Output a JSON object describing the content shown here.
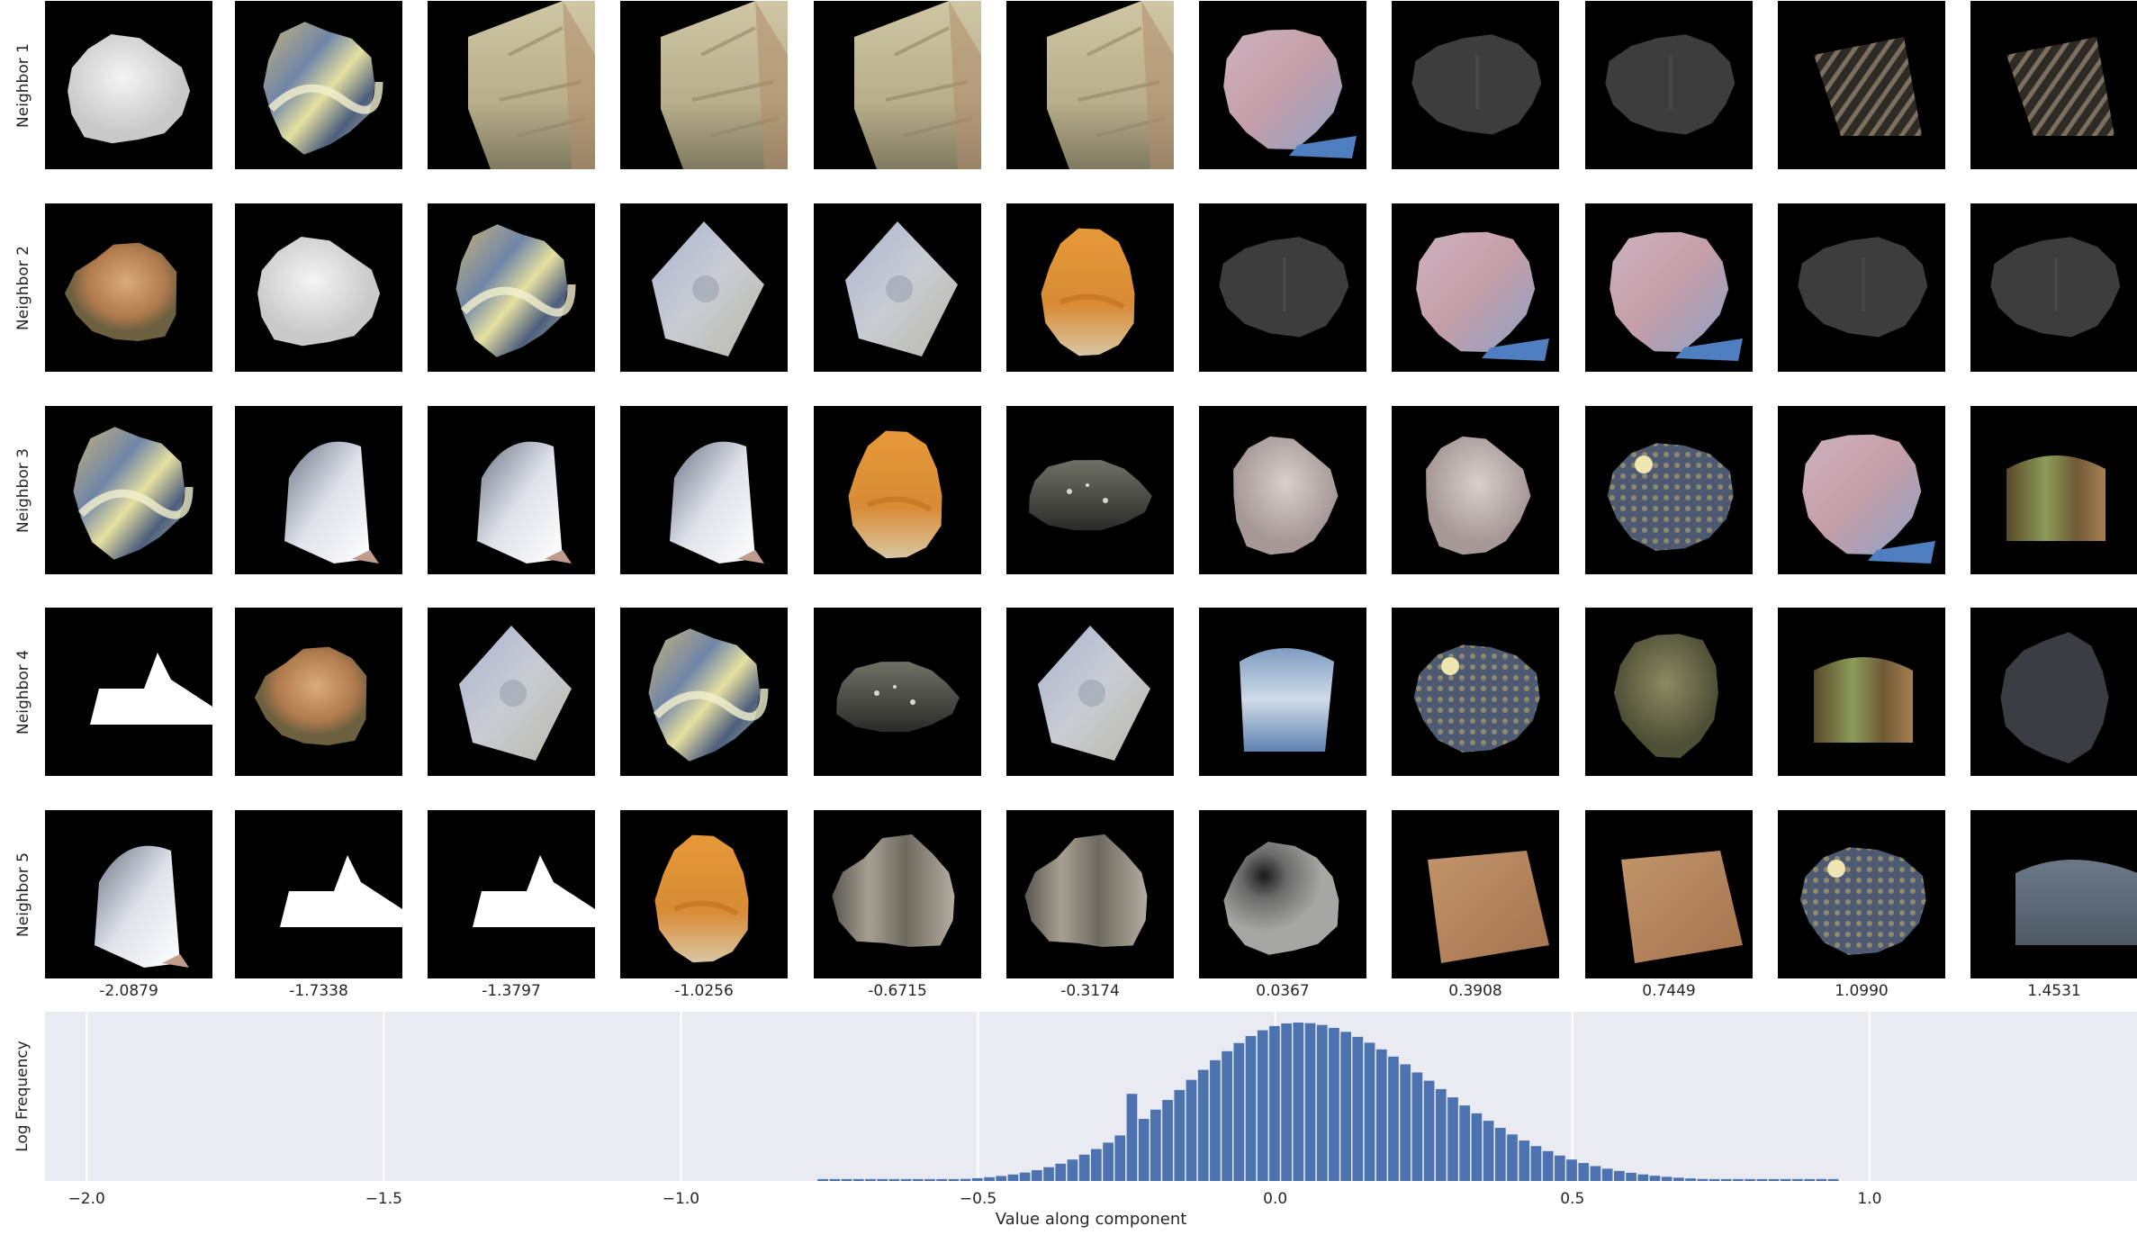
{
  "row_labels": [
    "Neighbor 1",
    "Neighbor 2",
    "Neighbor 3",
    "Neighbor 4",
    "Neighbor 5"
  ],
  "column_values": [
    "-2.0879",
    "-1.7338",
    "-1.3797",
    "-1.0256",
    "-0.6715",
    "-0.3174",
    "0.0367",
    "0.3908",
    "0.7449",
    "1.0990",
    "1.4531"
  ],
  "tile_style_legend": {
    "white_blob": "white round blob",
    "glass": "yellow-blue swirled glass texture",
    "rock_cliff": "beige rock cliff",
    "sky": "pink-blue sky patch",
    "gray_disc": "dark gray rounded shape",
    "striped_dark": "dark striped texture",
    "tan_blob": "tan brown textured blob",
    "statue": "blue-gray statue patch",
    "orange": "orange sandstone",
    "gradient_cap": "gray-to-white gradient shape",
    "pebble": "dark shiny pebble",
    "pale_pink": "pale pinkish blob",
    "dotted_blue": "blue dotted pattern",
    "moss_box": "green brown mossy block",
    "white_cloud": "white shape with flat bottom",
    "cloud_blue": "blue and white cloud texture",
    "moss_round": "olive mossy round texture",
    "dark_blob": "dark gray blob",
    "wood": "grayish wood-grain blob",
    "gray_ball": "gray shaded ball",
    "sand_square": "sandy brown square",
    "slate": "slate blue texture"
  },
  "tiles": [
    [
      "white_blob",
      "glass",
      "rock_cliff",
      "rock_cliff",
      "rock_cliff",
      "rock_cliff",
      "sky",
      "gray_disc",
      "gray_disc",
      "striped_dark",
      "striped_dark"
    ],
    [
      "tan_blob",
      "white_blob",
      "glass",
      "statue",
      "statue",
      "orange",
      "gray_disc",
      "sky",
      "sky",
      "gray_disc",
      "gray_disc"
    ],
    [
      "glass",
      "gradient_cap",
      "gradient_cap",
      "gradient_cap",
      "orange",
      "pebble",
      "pale_pink",
      "pale_pink",
      "dotted_blue",
      "sky",
      "moss_box"
    ],
    [
      "white_cloud",
      "tan_blob",
      "statue",
      "glass",
      "pebble",
      "statue",
      "cloud_blue",
      "dotted_blue",
      "moss_round",
      "moss_box",
      "dark_blob"
    ],
    [
      "gradient_cap",
      "white_cloud",
      "white_cloud",
      "orange",
      "wood",
      "wood",
      "gray_ball",
      "sand_square",
      "sand_square",
      "dotted_blue",
      "slate"
    ]
  ],
  "chart_data": {
    "type": "bar",
    "xlabel": "Value along component",
    "ylabel": "Log Frequency",
    "xlim": [
      -2.07,
      1.45
    ],
    "x_ticks": [
      "−2.0",
      "−1.5",
      "−1.0",
      "−0.5",
      "0.0",
      "0.5",
      "1.0"
    ],
    "x_tick_values": [
      -2.0,
      -1.5,
      -1.0,
      -0.5,
      0.0,
      0.5,
      1.0
    ],
    "grid": true,
    "bar_color": "#4c72b0",
    "background_color": "#eaeaf2",
    "bin_width": 0.02,
    "bin_start": -0.77,
    "bin_end": 0.94,
    "relative_log_frequency_peak": 1.0,
    "distribution": {
      "center": 0.03,
      "spread_left": 0.19,
      "spread_right": 0.23
    }
  }
}
